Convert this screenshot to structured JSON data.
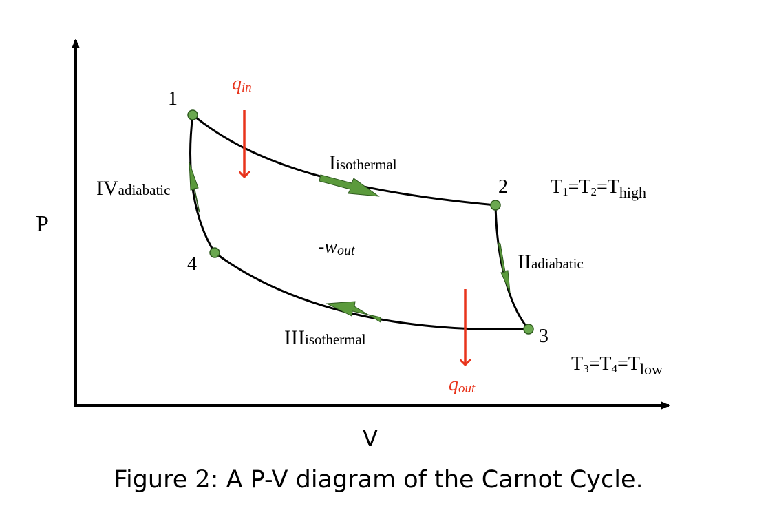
{
  "axes": {
    "y_label": "P",
    "x_label": "V"
  },
  "points": {
    "p1": "1",
    "p2": "2",
    "p3": "3",
    "p4": "4"
  },
  "processes": {
    "I": {
      "roman": "I",
      "kind": "isothermal"
    },
    "II": {
      "roman": "II",
      "kind": "adiabatic"
    },
    "III": {
      "roman": "III",
      "kind": "isothermal"
    },
    "IV": {
      "roman": "IV",
      "kind": "adiabatic"
    }
  },
  "heat": {
    "in": {
      "symbol": "q",
      "sub": "in"
    },
    "out": {
      "symbol": "q",
      "sub": "out"
    }
  },
  "work": {
    "prefix": "-w",
    "sub": "out"
  },
  "temperatures": {
    "high": {
      "t": "T",
      "s1": "1",
      "eq1": "=T",
      "s2": "2",
      "eq2": "=T",
      "sub": "high"
    },
    "low": {
      "t": "T",
      "s1": "3",
      "eq1": "=T",
      "s2": "4",
      "eq2": "=T",
      "sub": "low"
    }
  },
  "caption": {
    "prefix": "Figure ",
    "number": "2",
    "text": ": A P-V diagram of the Carnot Cycle."
  },
  "colors": {
    "curve": "#000000",
    "point_fill": "#6aa84f",
    "process_arrow": "#5b9a3c",
    "heat_arrow": "#e8341c"
  }
}
